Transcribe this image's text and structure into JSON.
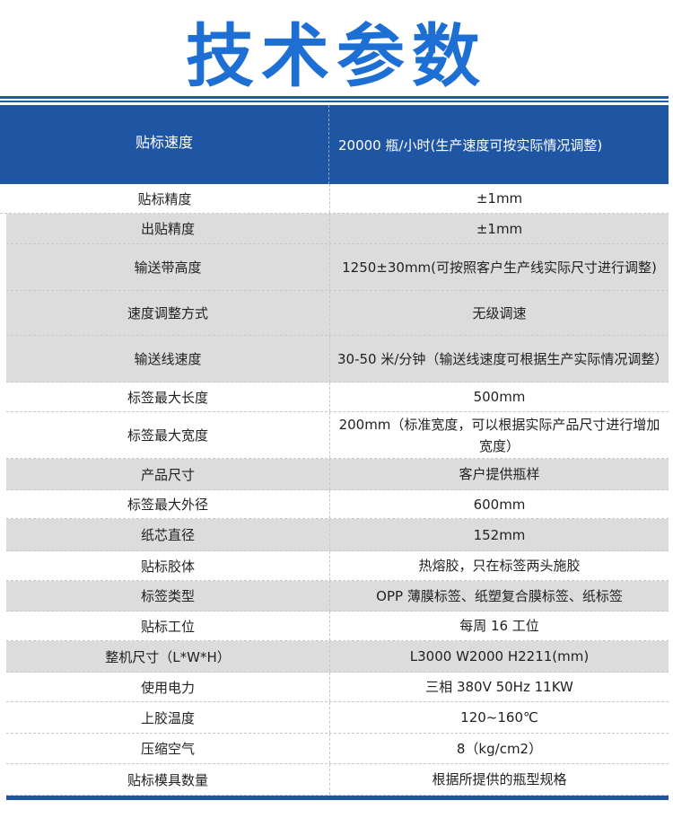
{
  "title": "技术参数",
  "header": {
    "key": "贴标速度",
    "value": "20000 瓶/小时(生产速度可按实际情况调整)"
  },
  "rows": [
    {
      "key": "贴标精度",
      "value": "±1mm"
    },
    {
      "key": "出贴精度",
      "value": "±1mm"
    },
    {
      "key": "输送带高度",
      "value": "1250±30mm(可按照客户生产线实际尺寸进行调整)"
    },
    {
      "key": "速度调整方式",
      "value": "无级调速"
    },
    {
      "key": "输送线速度",
      "value": "30-50 米/分钟（输送线速度可根据生产实际情况调整）"
    },
    {
      "key": "标签最大长度",
      "value": "500mm"
    },
    {
      "key": "标签最大宽度",
      "value": "200mm（标准宽度，可以根据实际产品尺寸进行增加宽度）"
    },
    {
      "key": "产品尺寸",
      "value": "客户提供瓶样"
    },
    {
      "key": "标签最大外径",
      "value": "600mm"
    },
    {
      "key": "纸芯直径",
      "value": "152mm"
    },
    {
      "key": "贴标胶体",
      "value": "热熔胶，只在标签两头施胶"
    },
    {
      "key": "标签类型",
      "value": "OPP 薄膜标签、纸塑复合膜标签、纸标签"
    },
    {
      "key": "贴标工位",
      "value": "每周 16 工位"
    },
    {
      "key": "整机尺寸（L*W*H）",
      "value": "L3000 W2000 H2211(mm)"
    },
    {
      "key": "使用电力",
      "value": "三相 380V 50Hz 11KW"
    },
    {
      "key": "上胶温度",
      "value": "120~160℃"
    },
    {
      "key": "压缩空气",
      "value": "8（kg/cm2）"
    },
    {
      "key": "贴标模具数量",
      "value": "根据所提供的瓶型规格"
    }
  ],
  "colors": {
    "title": "#1e6fd4",
    "header_bg": "#1f56a4",
    "gray_row": "#dcdcdc"
  }
}
